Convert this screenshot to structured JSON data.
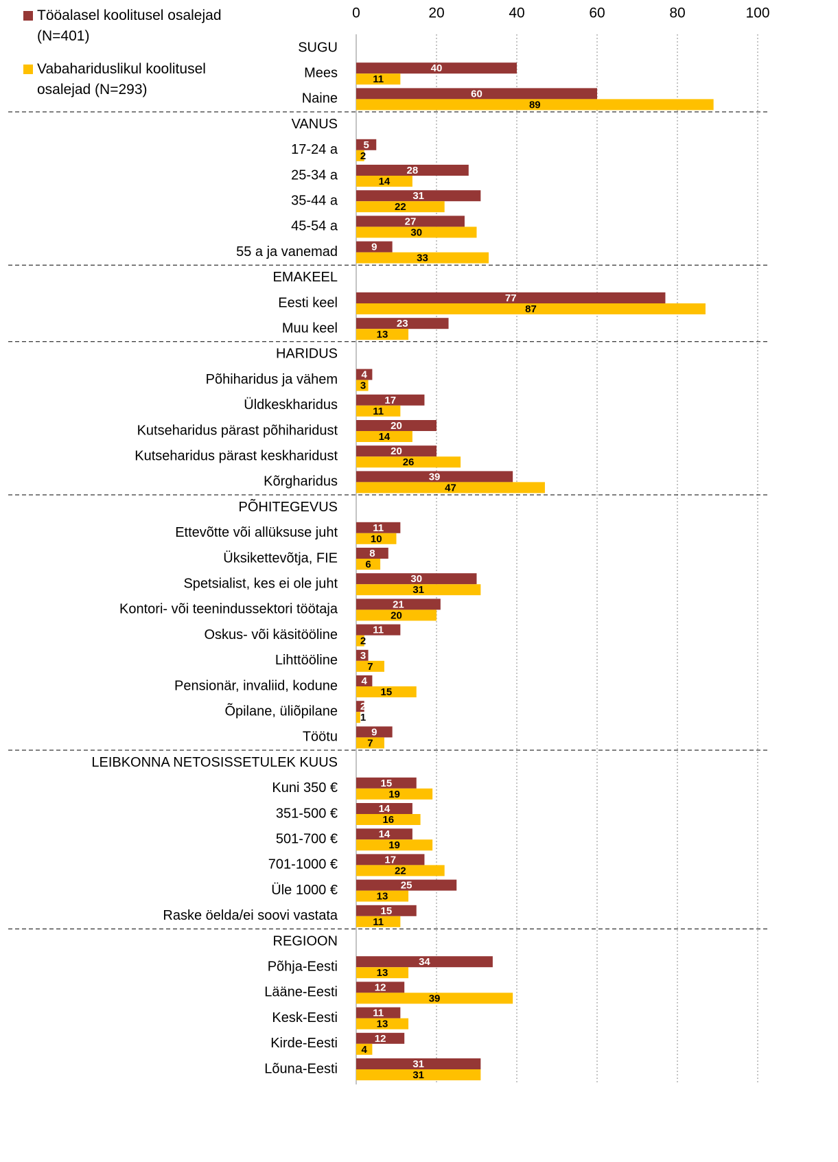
{
  "chart_data": {
    "type": "hbar",
    "categories": [
      "SUGU",
      "Mees",
      "Naine",
      "VANUS",
      "17-24 a",
      "25-34 a",
      "35-44 a",
      "45-54 a",
      "55 a ja vanemad",
      "EMAKEEL",
      "Eesti keel",
      "Muu keel",
      "HARIDUS",
      "Põhiharidus ja vähem",
      "Üldkeskharidus",
      "Kutseharidus pärast põhiharidust",
      "Kutseharidus pärast keskharidust",
      "Kõrgharidus",
      "PÕHITEGEVUS",
      "Ettevõtte või allüksuse juht",
      "Üksikettevõtja, FIE",
      "Spetsialist, kes ei ole juht",
      "Kontori- või teenindussektori töötaja",
      "Oskus- või käsitööline",
      "Lihttööline",
      "Pensionär, invaliid, kodune",
      "Õpilane, üliõpilane",
      "Töötu",
      "LEIBKONNA NETOSISSETULEK KUUS",
      "Kuni 350 €",
      "351-500 €",
      "501-700 €",
      "701-1000 €",
      "Üle 1000 €",
      "Raske öelda/ei soovi vastata",
      "REGIOON",
      "Põhja-Eesti",
      "Lääne-Eesti",
      "Kesk-Eesti",
      "Kirde-Eesti",
      "Lõuna-Eesti"
    ],
    "series": [
      {
        "name": "Tööalasel koolitusel osalejad (N=401)",
        "color": "#953735",
        "values": [
          null,
          40,
          60,
          null,
          5,
          28,
          31,
          27,
          9,
          null,
          77,
          23,
          null,
          4,
          17,
          20,
          20,
          39,
          null,
          11,
          8,
          30,
          21,
          11,
          3,
          4,
          2,
          9,
          null,
          15,
          14,
          14,
          17,
          25,
          15,
          null,
          34,
          12,
          11,
          12,
          31
        ]
      },
      {
        "name": "Vabahariduslikul koolitusel osalejad (N=293)",
        "color": "#ffc000",
        "values": [
          null,
          11,
          89,
          null,
          2,
          14,
          22,
          30,
          33,
          null,
          87,
          13,
          null,
          3,
          11,
          14,
          26,
          47,
          null,
          10,
          6,
          31,
          20,
          2,
          7,
          15,
          1,
          7,
          null,
          19,
          16,
          19,
          22,
          13,
          11,
          null,
          13,
          39,
          13,
          4,
          31
        ]
      }
    ],
    "xlim": [
      0,
      100
    ],
    "xticks": [
      0,
      20,
      40,
      60,
      80,
      100
    ],
    "grid": true,
    "legend": "top-left"
  }
}
